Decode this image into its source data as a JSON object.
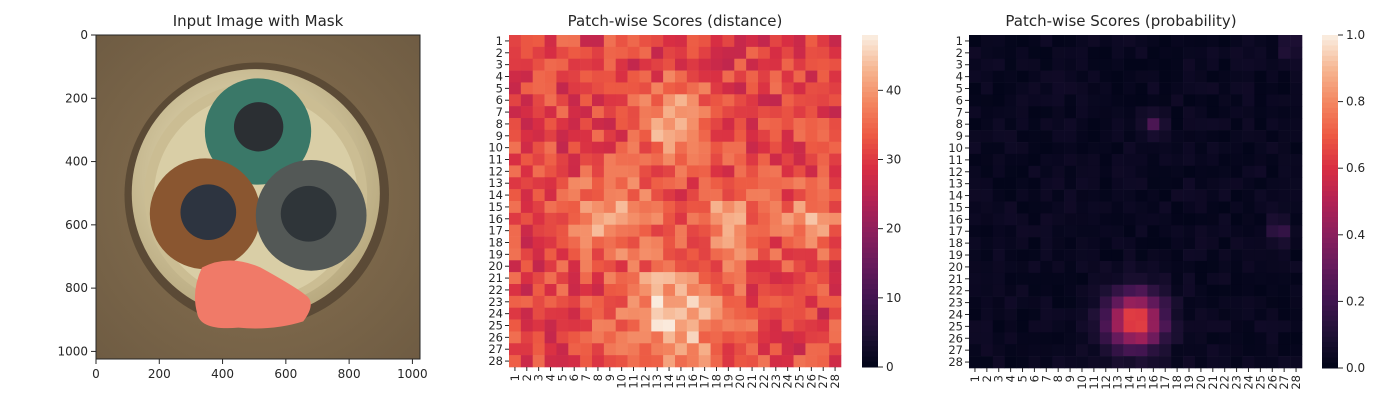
{
  "charts": [
    {
      "type": "image",
      "title": "Input Image with Mask",
      "x_ticks": [
        "0",
        "200",
        "400",
        "600",
        "800",
        "1000"
      ],
      "y_ticks": [
        "0",
        "200",
        "400",
        "600",
        "800",
        "1000"
      ],
      "x_tick_values": [
        0,
        200,
        400,
        600,
        800,
        1000
      ],
      "y_tick_values": [
        0,
        200,
        400,
        600,
        800,
        1000
      ],
      "extent": [
        0,
        1024
      ],
      "colors": {
        "background": "#786449",
        "outer_ring": "#d6caa0",
        "inner_fill": "#bfb28b",
        "teal_cable": "#3c7a6c",
        "brown_cable": "#8e5a32",
        "gray_cable": "#555a58",
        "mask": "#f07a68"
      }
    },
    {
      "type": "heatmap",
      "title": "Patch-wise Scores (distance)",
      "x_labels": [
        "1",
        "2",
        "3",
        "4",
        "5",
        "6",
        "7",
        "8",
        "9",
        "10",
        "11",
        "12",
        "13",
        "14",
        "15",
        "16",
        "17",
        "18",
        "19",
        "20",
        "21",
        "22",
        "23",
        "24",
        "25",
        "26",
        "27",
        "28"
      ],
      "y_labels": [
        "1",
        "2",
        "3",
        "4",
        "5",
        "6",
        "7",
        "8",
        "9",
        "10",
        "11",
        "12",
        "13",
        "14",
        "15",
        "16",
        "17",
        "18",
        "19",
        "20",
        "21",
        "22",
        "23",
        "24",
        "25",
        "26",
        "27",
        "28"
      ],
      "colorbar_ticks": [
        "0",
        "10",
        "20",
        "30",
        "40"
      ],
      "colorbar_tick_values": [
        0,
        10,
        20,
        30,
        40
      ],
      "vmin": 0,
      "vmax": 48,
      "colormap": "rocket",
      "hotspots": [
        {
          "row": 8,
          "col": 14.5,
          "peak": 44,
          "spread": 2.2
        },
        {
          "row": 24,
          "col": 14.5,
          "peak": 45,
          "spread": 3.2
        },
        {
          "row": 16,
          "col": 9,
          "peak": 41,
          "spread": 2.6
        },
        {
          "row": 16.5,
          "col": 19,
          "peak": 40,
          "spread": 2.4
        },
        {
          "row": 16,
          "col": 26,
          "peak": 40,
          "spread": 1.8
        }
      ],
      "base": 31
    },
    {
      "type": "heatmap",
      "title": "Patch-wise Scores (probability)",
      "x_labels": [
        "1",
        "2",
        "3",
        "4",
        "5",
        "6",
        "7",
        "8",
        "9",
        "10",
        "11",
        "12",
        "13",
        "14",
        "15",
        "16",
        "17",
        "18",
        "19",
        "20",
        "21",
        "22",
        "23",
        "24",
        "25",
        "26",
        "27",
        "28"
      ],
      "y_labels": [
        "1",
        "2",
        "3",
        "4",
        "5",
        "6",
        "7",
        "8",
        "9",
        "10",
        "11",
        "12",
        "13",
        "14",
        "15",
        "16",
        "17",
        "18",
        "19",
        "20",
        "21",
        "22",
        "23",
        "24",
        "25",
        "26",
        "27",
        "28"
      ],
      "colorbar_ticks": [
        "0.0",
        "0.2",
        "0.4",
        "0.6",
        "0.8",
        "1.0"
      ],
      "colorbar_tick_values": [
        0,
        0.2,
        0.4,
        0.6,
        0.8,
        1.0
      ],
      "vmin": 0,
      "vmax": 1,
      "colormap": "rocket",
      "hotspots": [
        {
          "row": 24.5,
          "col": 14.5,
          "peak": 0.7,
          "spread": 1.6
        },
        {
          "row": 8,
          "col": 16,
          "peak": 0.25,
          "spread": 0.6
        },
        {
          "row": 17,
          "col": 26.5,
          "peak": 0.18,
          "spread": 0.7
        },
        {
          "row": 1.5,
          "col": 27.5,
          "peak": 0.15,
          "spread": 0.6
        }
      ],
      "base": 0.02
    }
  ]
}
